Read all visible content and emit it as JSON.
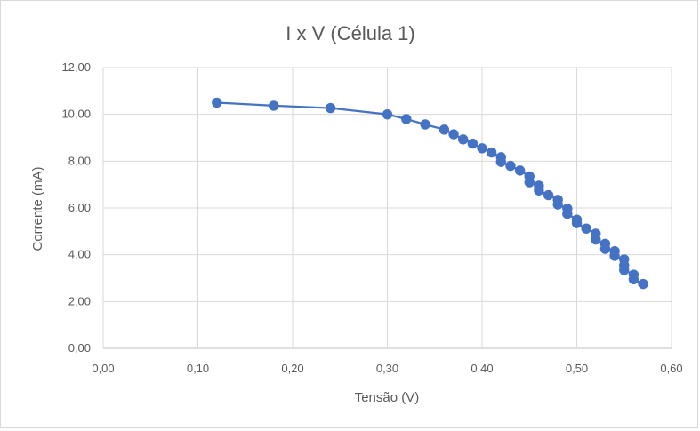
{
  "chart_data": {
    "type": "line",
    "title": "I x V (Célula 1)",
    "xlabel": "Tensão (V)",
    "ylabel": "Corrente (mA)",
    "xlim": [
      0,
      0.6
    ],
    "ylim": [
      0,
      12
    ],
    "x_ticks": [
      "0,00",
      "0,10",
      "0,20",
      "0,30",
      "0,40",
      "0,50",
      "0,60"
    ],
    "y_ticks": [
      "0,00",
      "2,00",
      "4,00",
      "6,00",
      "8,00",
      "10,00",
      "12,00"
    ],
    "x_tick_values": [
      0,
      0.1,
      0.2,
      0.3,
      0.4,
      0.5,
      0.6
    ],
    "y_tick_values": [
      0,
      2,
      4,
      6,
      8,
      10,
      12
    ],
    "grid": "both",
    "legend": "none",
    "color": "#4472c4",
    "markers": true,
    "series": [
      {
        "x": [
          0.12,
          0.18,
          0.24,
          0.3,
          0.32,
          0.34,
          0.36,
          0.37,
          0.38,
          0.39,
          0.4,
          0.41,
          0.42,
          0.42,
          0.43,
          0.44,
          0.45,
          0.45,
          0.46,
          0.46,
          0.47,
          0.48,
          0.48,
          0.49,
          0.49,
          0.5,
          0.5,
          0.51,
          0.52,
          0.52,
          0.53,
          0.53,
          0.54,
          0.54,
          0.55,
          0.55,
          0.55,
          0.56,
          0.56,
          0.57
        ],
        "y": [
          10.5,
          10.37,
          10.27,
          10.0,
          9.8,
          9.57,
          9.35,
          9.15,
          8.93,
          8.75,
          8.55,
          8.37,
          8.17,
          7.97,
          7.8,
          7.6,
          7.35,
          7.1,
          6.95,
          6.75,
          6.55,
          6.35,
          6.15,
          5.97,
          5.75,
          5.5,
          5.35,
          5.12,
          4.9,
          4.65,
          4.47,
          4.25,
          4.15,
          3.95,
          3.8,
          3.55,
          3.35,
          3.15,
          2.95,
          2.75
        ]
      }
    ]
  }
}
